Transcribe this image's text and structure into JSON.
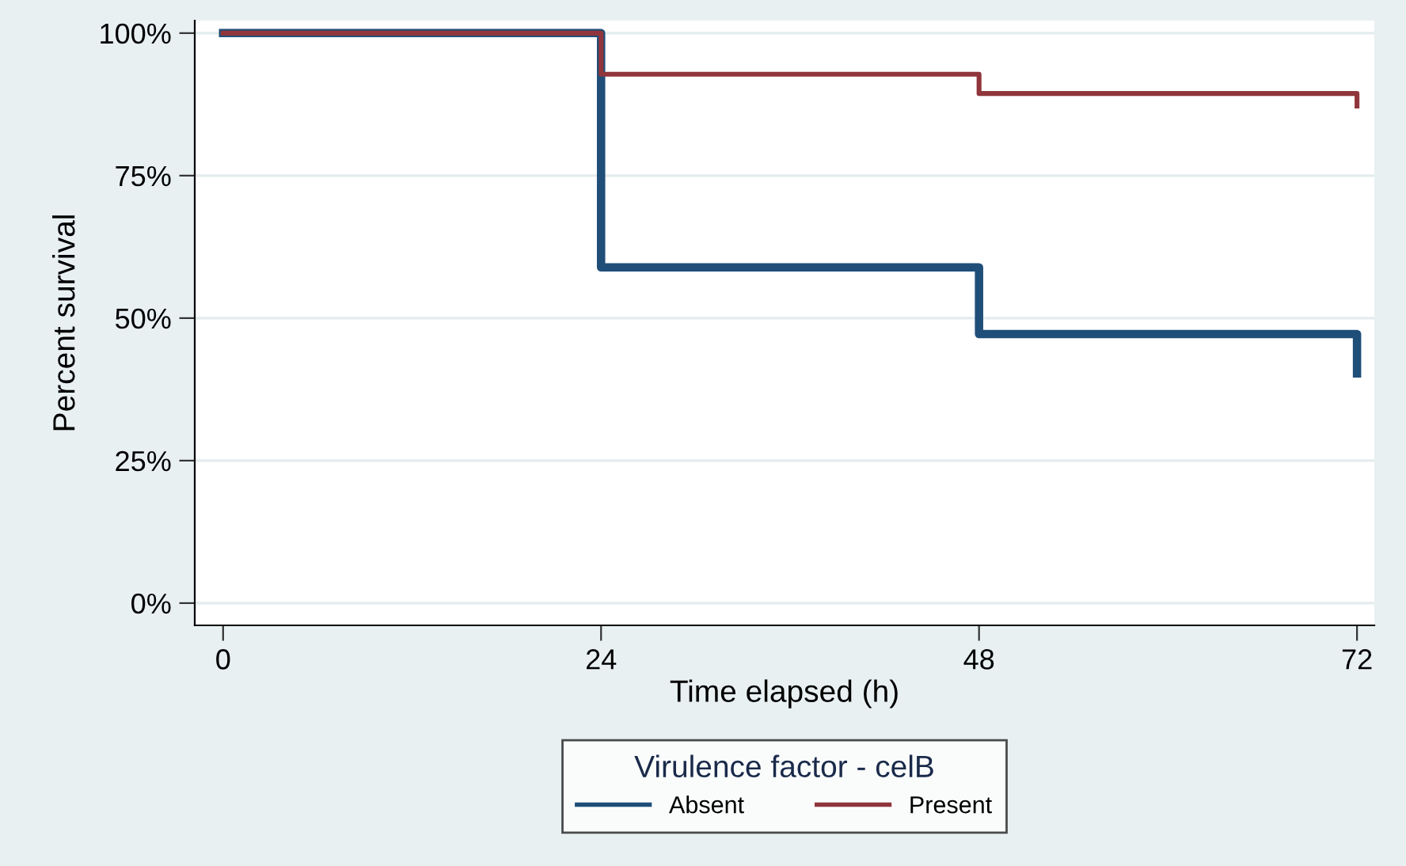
{
  "chart_data": {
    "type": "step",
    "xlabel": "Time elapsed (h)",
    "ylabel": "Percent survival",
    "legend_title": "Virulence factor - celB",
    "xlim": [
      -1.8,
      73.1
    ],
    "ylim": [
      -3.9,
      102.2
    ],
    "xticks": [
      0,
      24,
      48,
      72
    ],
    "yticks": [
      {
        "value": 0,
        "label": "0%"
      },
      {
        "value": 25,
        "label": "25%"
      },
      {
        "value": 50,
        "label": "50%"
      },
      {
        "value": 75,
        "label": "75%"
      },
      {
        "value": 100,
        "label": "100%"
      }
    ],
    "grid": "y",
    "legend": "bottom",
    "line_style": "solid",
    "marker": "none",
    "series": [
      {
        "name": "Absent",
        "color": "#1f4e79",
        "x": [
          0,
          24,
          48,
          72,
          72
        ],
        "values": [
          100,
          58.9,
          47.2,
          47.2,
          40.3
        ]
      },
      {
        "name": "Present",
        "color": "#90353b",
        "x": [
          0,
          24,
          48,
          72,
          72
        ],
        "values": [
          100,
          92.8,
          89.4,
          89.4,
          87.2
        ]
      }
    ]
  }
}
